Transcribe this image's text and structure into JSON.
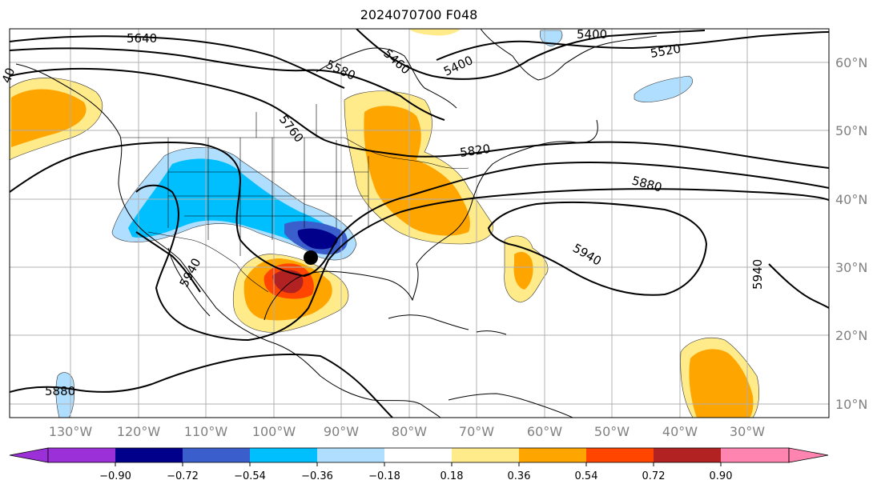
{
  "title": "2024070700 F048",
  "map": {
    "projection": "equirectangular",
    "extent": {
      "lon": [
        -135,
        -14
      ],
      "lat": [
        8,
        65
      ]
    },
    "grid_lines": true,
    "marker": {
      "name": "storm-center-marker",
      "lon": -95.2,
      "lat": 31.2
    },
    "longitude_labels": [
      "130°W",
      "120°W",
      "110°W",
      "100°W",
      "90°W",
      "80°W",
      "70°W",
      "60°W",
      "50°W",
      "40°W",
      "30°W"
    ],
    "latitude_labels": [
      "60°N",
      "50°N",
      "40°N",
      "30°N",
      "20°N",
      "10°N"
    ]
  },
  "contour_labels": [
    "5640",
    "5460",
    "5400",
    "5400",
    "5520",
    "5580",
    "5760",
    "5820",
    "5880",
    "5940",
    "5940",
    "5940",
    "5880",
    "40"
  ],
  "colorbar": {
    "ticks": [
      "−0.90",
      "−0.72",
      "−0.54",
      "−0.36",
      "−0.18",
      "0.18",
      "0.36",
      "0.54",
      "0.72",
      "0.90"
    ],
    "colors": [
      "#9b30d8",
      "#00008b",
      "#3a5fcd",
      "#00bfff",
      "#afdeff",
      "#ffffff",
      "#ffeb8a",
      "#ffa500",
      "#ff4500",
      "#b22222",
      "#ff85b0"
    ]
  }
}
